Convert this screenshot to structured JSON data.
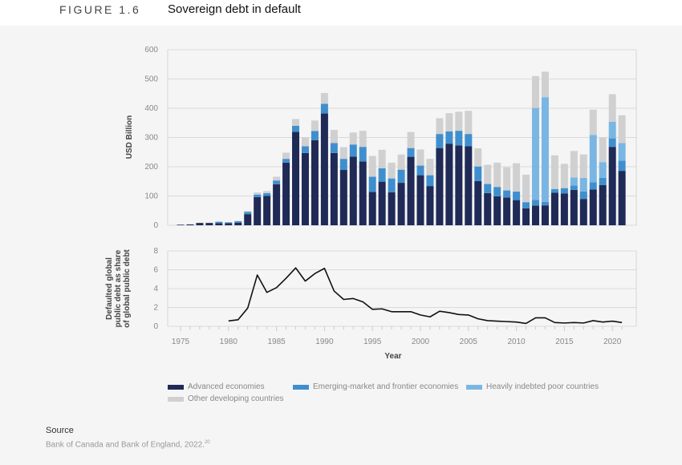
{
  "header": {
    "figure_label": "FIGURE 1.6",
    "title": "Sovereign debt in default"
  },
  "chart_data": [
    {
      "type": "bar",
      "stacked": true,
      "ylabel": "USD Billion",
      "ylim": [
        0,
        600
      ],
      "yticks": [
        0,
        100,
        200,
        300,
        400,
        500,
        600
      ],
      "grid": true,
      "x": [
        1975,
        1976,
        1977,
        1978,
        1979,
        1980,
        1981,
        1982,
        1983,
        1984,
        1985,
        1986,
        1987,
        1988,
        1989,
        1990,
        1991,
        1992,
        1993,
        1994,
        1995,
        1996,
        1997,
        1998,
        1999,
        2000,
        2001,
        2002,
        2003,
        2004,
        2005,
        2006,
        2007,
        2008,
        2009,
        2010,
        2011,
        2012,
        2013,
        2014,
        2015,
        2016,
        2017,
        2018,
        2019,
        2020,
        2021
      ],
      "series": [
        {
          "name": "Advanced economies",
          "color": "#1f2a56",
          "values": [
            2,
            3,
            8,
            8,
            7,
            7,
            9,
            38,
            96,
            100,
            140,
            214,
            319,
            247,
            291,
            382,
            247,
            189,
            235,
            218,
            114,
            149,
            113,
            145,
            234,
            171,
            134,
            264,
            279,
            273,
            270,
            151,
            110,
            99,
            95,
            86,
            58,
            67,
            68,
            111,
            109,
            121,
            90,
            122,
            137,
            268,
            186
          ]
        },
        {
          "name": "Emerging-market and frontier economies",
          "color": "#3f8fcf",
          "values": [
            0,
            0,
            0,
            0,
            5,
            3,
            5,
            8,
            9,
            10,
            13,
            13,
            21,
            23,
            31,
            33,
            34,
            38,
            41,
            50,
            52,
            46,
            47,
            45,
            30,
            33,
            37,
            48,
            42,
            50,
            42,
            50,
            31,
            32,
            24,
            29,
            21,
            20,
            12,
            13,
            18,
            15,
            25,
            25,
            25,
            29,
            35
          ]
        },
        {
          "name": "Heavily indebted poor countries",
          "color": "#7ab6e3",
          "values": [
            0,
            0,
            0,
            0,
            0,
            0,
            0,
            0,
            0,
            0,
            0,
            0,
            0,
            0,
            0,
            0,
            0,
            0,
            0,
            0,
            0,
            0,
            0,
            0,
            0,
            0,
            0,
            0,
            0,
            0,
            0,
            0,
            0,
            0,
            0,
            0,
            0,
            314,
            358,
            0,
            0,
            27,
            47,
            162,
            54,
            57,
            60
          ]
        },
        {
          "name": "Other developing countries",
          "color": "#d0d0d0",
          "values": [
            0,
            0,
            1,
            1,
            1,
            1,
            1,
            3,
            7,
            7,
            13,
            21,
            23,
            30,
            36,
            37,
            45,
            40,
            41,
            55,
            71,
            63,
            54,
            52,
            55,
            55,
            56,
            54,
            62,
            65,
            79,
            62,
            66,
            83,
            79,
            97,
            94,
            109,
            87,
            115,
            83,
            91,
            80,
            86,
            84,
            94,
            95
          ]
        }
      ]
    },
    {
      "type": "line",
      "ylabel": "Defaulted global public debt as share of global public debt",
      "xlabel": "Year",
      "ylim": [
        0,
        8
      ],
      "yticks": [
        0,
        2,
        4,
        6,
        8
      ],
      "xlim": [
        1975,
        2021
      ],
      "xticks": [
        1975,
        1980,
        1985,
        1990,
        1995,
        2000,
        2005,
        2010,
        2015,
        2020
      ],
      "grid": true,
      "x": [
        1980,
        1981,
        1982,
        1983,
        1984,
        1985,
        1986,
        1987,
        1988,
        1989,
        1990,
        1991,
        1992,
        1993,
        1994,
        1995,
        1996,
        1997,
        1998,
        1999,
        2000,
        2001,
        2002,
        2003,
        2004,
        2005,
        2006,
        2007,
        2008,
        2009,
        2010,
        2011,
        2012,
        2013,
        2014,
        2015,
        2016,
        2017,
        2018,
        2019,
        2020,
        2021
      ],
      "values": [
        0.57,
        0.7,
        1.93,
        5.45,
        3.6,
        4.1,
        5.1,
        6.2,
        4.8,
        5.6,
        6.15,
        3.75,
        2.85,
        2.95,
        2.6,
        1.8,
        1.85,
        1.55,
        1.55,
        1.55,
        1.2,
        1.0,
        1.6,
        1.45,
        1.25,
        1.2,
        0.8,
        0.6,
        0.55,
        0.5,
        0.45,
        0.3,
        0.9,
        0.9,
        0.4,
        0.35,
        0.4,
        0.35,
        0.6,
        0.45,
        0.55,
        0.4
      ],
      "color": "#111111"
    }
  ],
  "legend": {
    "placement": "bottom",
    "items": [
      "Advanced economies",
      "Emerging-market and frontier economies",
      "Heavily indebted poor countries",
      "Other developing countries"
    ]
  },
  "source": {
    "title": "Source",
    "text": "Bank of Canada and Bank of England, 2022.",
    "footnote": "20"
  }
}
